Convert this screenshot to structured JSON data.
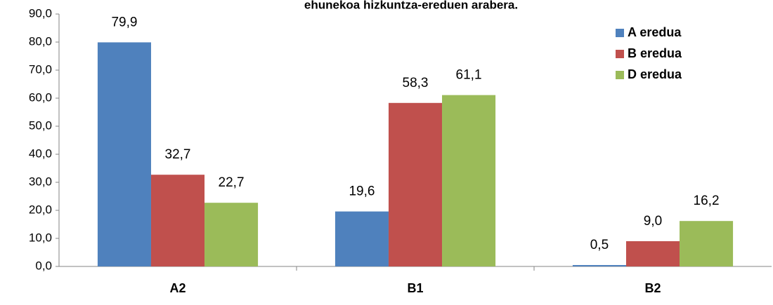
{
  "chart_data": {
    "type": "bar",
    "title": "ehunekoa hizkuntza-ereduen arabera.",
    "categories": [
      "A2",
      "B1",
      "B2"
    ],
    "series": [
      {
        "name": "A eredua",
        "color": "#4f81bd",
        "values": [
          79.9,
          19.6,
          0.5
        ],
        "value_labels": [
          "79,9",
          "19,6",
          "0,5"
        ]
      },
      {
        "name": "B eredua",
        "color": "#c0504d",
        "values": [
          32.7,
          58.3,
          9.0
        ],
        "value_labels": [
          "32,7",
          "58,3",
          "9,0"
        ]
      },
      {
        "name": "D eredua",
        "color": "#9bbb59",
        "values": [
          22.7,
          61.1,
          16.2
        ],
        "value_labels": [
          "22,7",
          "61,1",
          "16,2"
        ]
      }
    ],
    "ylim": [
      0,
      90
    ],
    "yticks": [
      {
        "value": 0,
        "label": "0,0"
      },
      {
        "value": 10,
        "label": "10,0"
      },
      {
        "value": 20,
        "label": "20,0"
      },
      {
        "value": 30,
        "label": "30,0"
      },
      {
        "value": 40,
        "label": "40,0"
      },
      {
        "value": 50,
        "label": "50,0"
      },
      {
        "value": 60,
        "label": "60,0"
      },
      {
        "value": 70,
        "label": "70,0"
      },
      {
        "value": 80,
        "label": "80,0"
      },
      {
        "value": 90,
        "label": "90,0"
      }
    ],
    "grid": false,
    "legend": "top-right"
  }
}
